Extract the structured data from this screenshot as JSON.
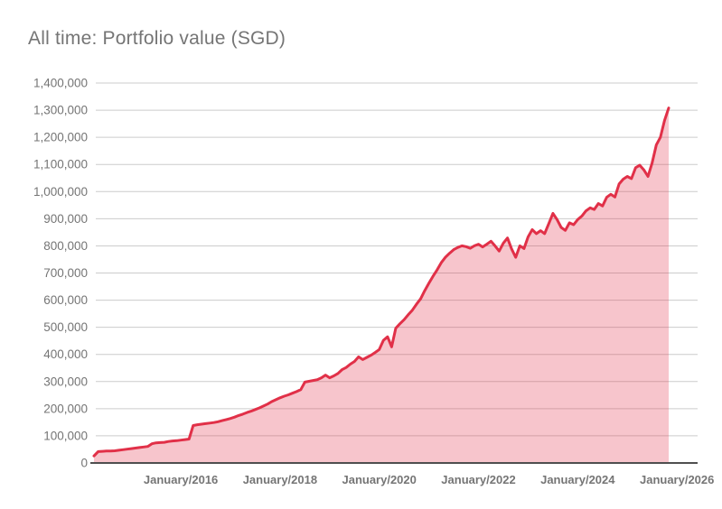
{
  "page": {
    "background": "#ffffff"
  },
  "chart_data": {
    "type": "area",
    "title": "All time: Portfolio value (SGD)",
    "currency": "SGD",
    "xlabel": "",
    "ylabel": "",
    "ylim": [
      0,
      1400000
    ],
    "grid": true,
    "legend": "none",
    "y_tick_step": 100000,
    "y_tick_labels": [
      "0",
      "100,000",
      "200,000",
      "300,000",
      "400,000",
      "500,000",
      "600,000",
      "700,000",
      "800,000",
      "900,000",
      "1,000,000",
      "1,100,000",
      "1,200,000",
      "1,300,000",
      "1,400,000"
    ],
    "x_ticks": [
      {
        "label": "January/2016",
        "month_index": 21
      },
      {
        "label": "January/2018",
        "month_index": 45
      },
      {
        "label": "January/2020",
        "month_index": 69
      },
      {
        "label": "January/2022",
        "month_index": 93
      },
      {
        "label": "January/2024",
        "month_index": 117
      },
      {
        "label": "January/2026",
        "month_index": 141
      }
    ],
    "series": [
      {
        "name": "Portfolio value",
        "interval": "monthly",
        "start_month": "2014-04",
        "end_month": "2025-11",
        "values": [
          26000,
          42000,
          43000,
          44000,
          44000,
          45000,
          47000,
          49000,
          51000,
          53000,
          55000,
          57000,
          59000,
          61000,
          71000,
          74000,
          75000,
          76000,
          79000,
          81000,
          82000,
          84000,
          86000,
          88000,
          138000,
          141000,
          143000,
          145000,
          147000,
          149000,
          152000,
          156000,
          160000,
          164000,
          169000,
          175000,
          180000,
          186000,
          191000,
          197000,
          203000,
          210000,
          217000,
          226000,
          233000,
          240000,
          246000,
          251000,
          257000,
          263000,
          270000,
          298000,
          301000,
          304000,
          307000,
          314000,
          324000,
          314000,
          321000,
          330000,
          344000,
          352000,
          364000,
          374000,
          391000,
          381000,
          389000,
          397000,
          407000,
          418000,
          452000,
          465000,
          428000,
          497000,
          513000,
          528000,
          546000,
          563000,
          585000,
          605000,
          635000,
          662000,
          688000,
          712000,
          738000,
          758000,
          773000,
          786000,
          794000,
          800000,
          797000,
          791000,
          800000,
          806000,
          796000,
          806000,
          817000,
          800000,
          781000,
          810000,
          829000,
          789000,
          758000,
          800000,
          790000,
          833000,
          860000,
          845000,
          856000,
          845000,
          882000,
          920000,
          897000,
          868000,
          857000,
          885000,
          878000,
          897000,
          910000,
          929000,
          940000,
          934000,
          956000,
          947000,
          979000,
          990000,
          980000,
          1028000,
          1046000,
          1056000,
          1048000,
          1088000,
          1097000,
          1080000,
          1056000,
          1106000,
          1172000,
          1200000,
          1262000,
          1308000
        ]
      }
    ],
    "colors": {
      "line": "#e13048",
      "fill_rgba": "rgba(225,48,72,0.28)",
      "grid": "#cccccc",
      "axis": "#4f4f4f",
      "tick_label": "#757575",
      "title": "#757575"
    }
  }
}
